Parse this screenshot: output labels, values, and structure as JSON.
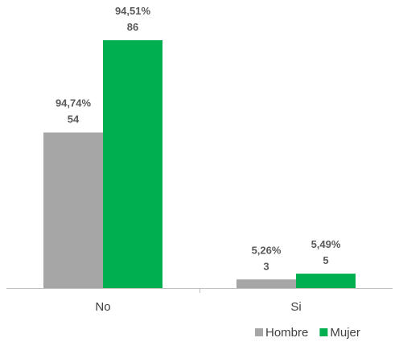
{
  "chart_data": {
    "type": "bar",
    "categories": [
      "No",
      "Si"
    ],
    "series": [
      {
        "name": "Hombre",
        "values": [
          54,
          3
        ],
        "percent_labels": [
          "94,74%",
          "5,26%"
        ],
        "color": "#a6a6a6"
      },
      {
        "name": "Mujer",
        "values": [
          86,
          5
        ],
        "percent_labels": [
          "94,51%",
          "5,49%"
        ],
        "color": "#00b050"
      }
    ],
    "title": "",
    "xlabel": "",
    "ylabel": "",
    "ylim": [
      0,
      86
    ],
    "grid": false,
    "legend_position": "bottom-right"
  }
}
